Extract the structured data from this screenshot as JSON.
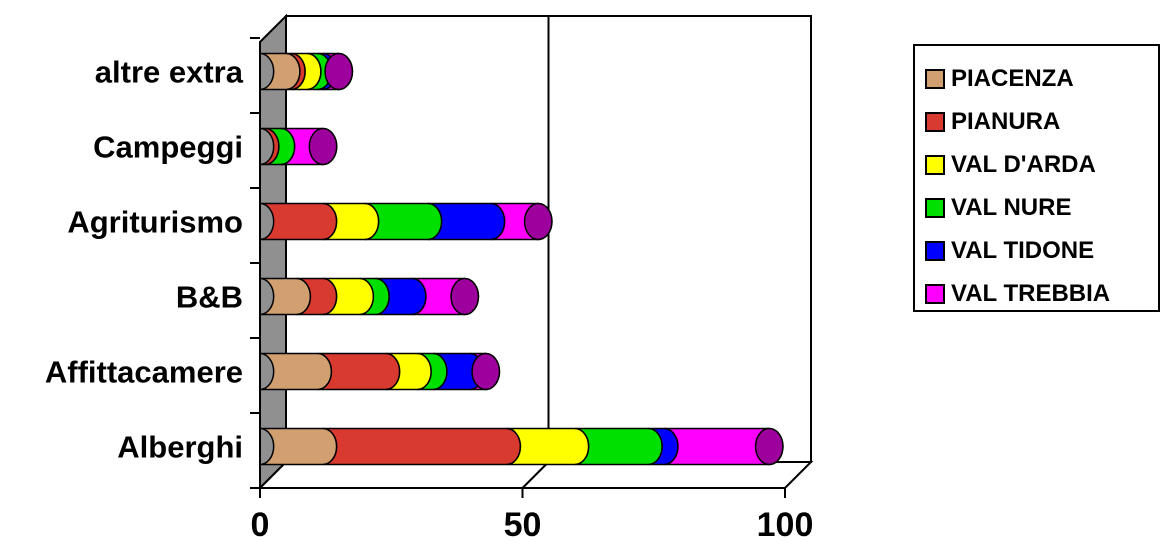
{
  "chart_data": {
    "type": "bar",
    "orientation": "horizontal",
    "stacked": true,
    "categories": [
      "Alberghi",
      "Affittacamere",
      "B&B",
      "Agriturismo",
      "Campeggi",
      "altre extra"
    ],
    "series": [
      {
        "name": "PIACENZA",
        "color": "#D2A070",
        "values": [
          12,
          11,
          7,
          0,
          0,
          5
        ]
      },
      {
        "name": "PIANURA",
        "color": "#D83A30",
        "values": [
          35,
          13,
          5,
          12,
          1,
          1
        ]
      },
      {
        "name": "VAL D'ARDA",
        "color": "#FFFF00",
        "values": [
          13,
          6,
          7,
          8,
          0,
          3
        ]
      },
      {
        "name": "VAL NURE",
        "color": "#00E000",
        "values": [
          14,
          3,
          3,
          12,
          3,
          2
        ]
      },
      {
        "name": "VAL TIDONE",
        "color": "#0000FF",
        "values": [
          3,
          7,
          7,
          12,
          0,
          1
        ]
      },
      {
        "name": "VAL TREBBIA",
        "color": "#FF00FF",
        "values": [
          20,
          3,
          10,
          9,
          8,
          3
        ]
      }
    ],
    "xlim": [
      0,
      100
    ],
    "xticks": [
      "0",
      "50",
      "100"
    ],
    "xlabel": "",
    "ylabel": "",
    "grid": true,
    "legend_position": "right"
  }
}
